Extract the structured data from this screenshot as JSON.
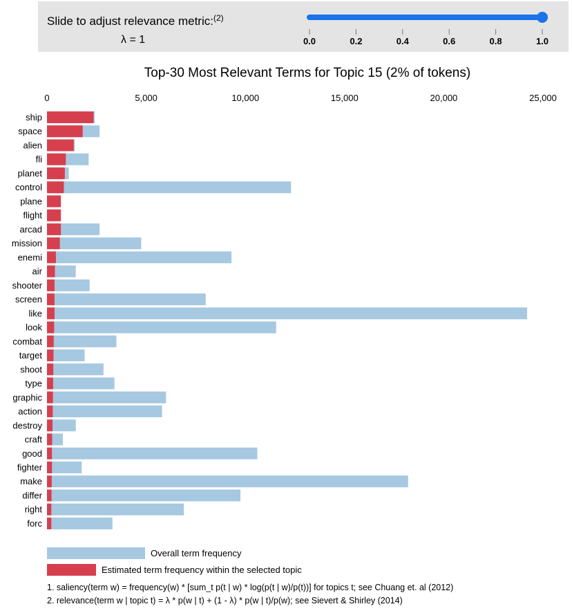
{
  "slider": {
    "label": "Slide to adjust relevance metric:",
    "footnote_ref": "(2)",
    "lambda_text": "λ = 1",
    "value": 1.0,
    "min": 0.0,
    "max": 1.0,
    "tick_labels": [
      "0.0",
      "0.2",
      "0.4",
      "0.6",
      "0.8",
      "1.0"
    ],
    "track_color": "#1a73e8"
  },
  "chart_data": {
    "type": "bar",
    "orientation": "horizontal",
    "title": "Top-30 Most Relevant Terms for Topic 15 (2% of tokens)",
    "xlim": [
      0,
      25000
    ],
    "x_ticks": [
      0,
      5000,
      10000,
      15000,
      20000,
      25000
    ],
    "x_tick_labels": [
      "0",
      "5,000",
      "10,000",
      "15,000",
      "20,000",
      "25,000"
    ],
    "categories": [
      "ship",
      "space",
      "alien",
      "fli",
      "planet",
      "control",
      "plane",
      "flight",
      "arcad",
      "mission",
      "enemi",
      "air",
      "shooter",
      "screen",
      "like",
      "look",
      "combat",
      "target",
      "shoot",
      "type",
      "graphic",
      "action",
      "destroy",
      "craft",
      "good",
      "fighter",
      "make",
      "differ",
      "right",
      "forc"
    ],
    "series": [
      {
        "name": "Overall term frequency",
        "color": "#a6c8e0",
        "values": [
          2400,
          2650,
          1400,
          2100,
          1100,
          12300,
          700,
          700,
          2650,
          4750,
          9300,
          1450,
          2150,
          8000,
          24200,
          11550,
          3500,
          1900,
          2850,
          3400,
          6000,
          5800,
          1450,
          800,
          10600,
          1750,
          18200,
          9750,
          6900,
          3300
        ]
      },
      {
        "name": "Estimated term frequency within the selected topic",
        "color": "#d6404e",
        "values": [
          2350,
          1800,
          1350,
          950,
          900,
          850,
          700,
          700,
          700,
          650,
          450,
          400,
          380,
          380,
          380,
          360,
          340,
          330,
          320,
          310,
          300,
          290,
          280,
          260,
          250,
          250,
          240,
          230,
          220,
          220
        ]
      }
    ],
    "legend": [
      "Overall term frequency",
      "Estimated term frequency within the selected topic"
    ],
    "notes": [
      "1. saliency(term w) = frequency(w) * [sum_t p(t | w) * log(p(t | w)/p(t))] for topics t; see Chuang et. al (2012)",
      "2. relevance(term w | topic t) = λ * p(w | t) + (1 - λ) * p(w | t)/p(w); see Sievert & Shirley (2014)"
    ]
  }
}
